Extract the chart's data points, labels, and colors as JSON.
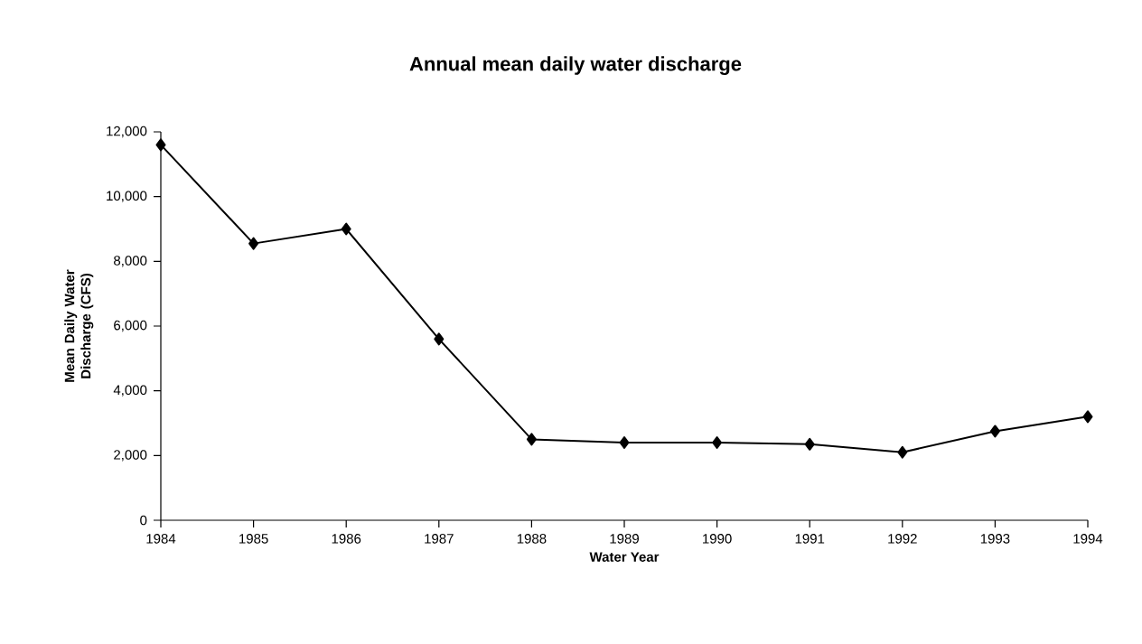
{
  "chart_data": {
    "type": "line",
    "title": "Annual mean daily water discharge",
    "xlabel": "Water Year",
    "ylabel": "Mean Daily Water Discharge (CFS)",
    "categories": [
      "1984",
      "1985",
      "1986",
      "1987",
      "1988",
      "1989",
      "1990",
      "1991",
      "1992",
      "1993",
      "1994"
    ],
    "values": [
      11600,
      8550,
      9000,
      5600,
      2500,
      2400,
      2400,
      2350,
      2100,
      2750,
      3200
    ],
    "color": "#000000",
    "marker": "diamond",
    "line_style": "solid",
    "grid": false,
    "legend": false,
    "ylim": [
      0,
      12000
    ],
    "yticks": [
      0,
      {
        "value": 2000,
        "label": "2,000"
      },
      {
        "value": 4000,
        "label": "4,000"
      },
      {
        "value": 6000,
        "label": "6,000"
      },
      {
        "value": 8000,
        "label": "8,000"
      },
      {
        "value": 10000,
        "label": "10,000"
      },
      {
        "value": 12000,
        "label": "12,000"
      }
    ]
  }
}
